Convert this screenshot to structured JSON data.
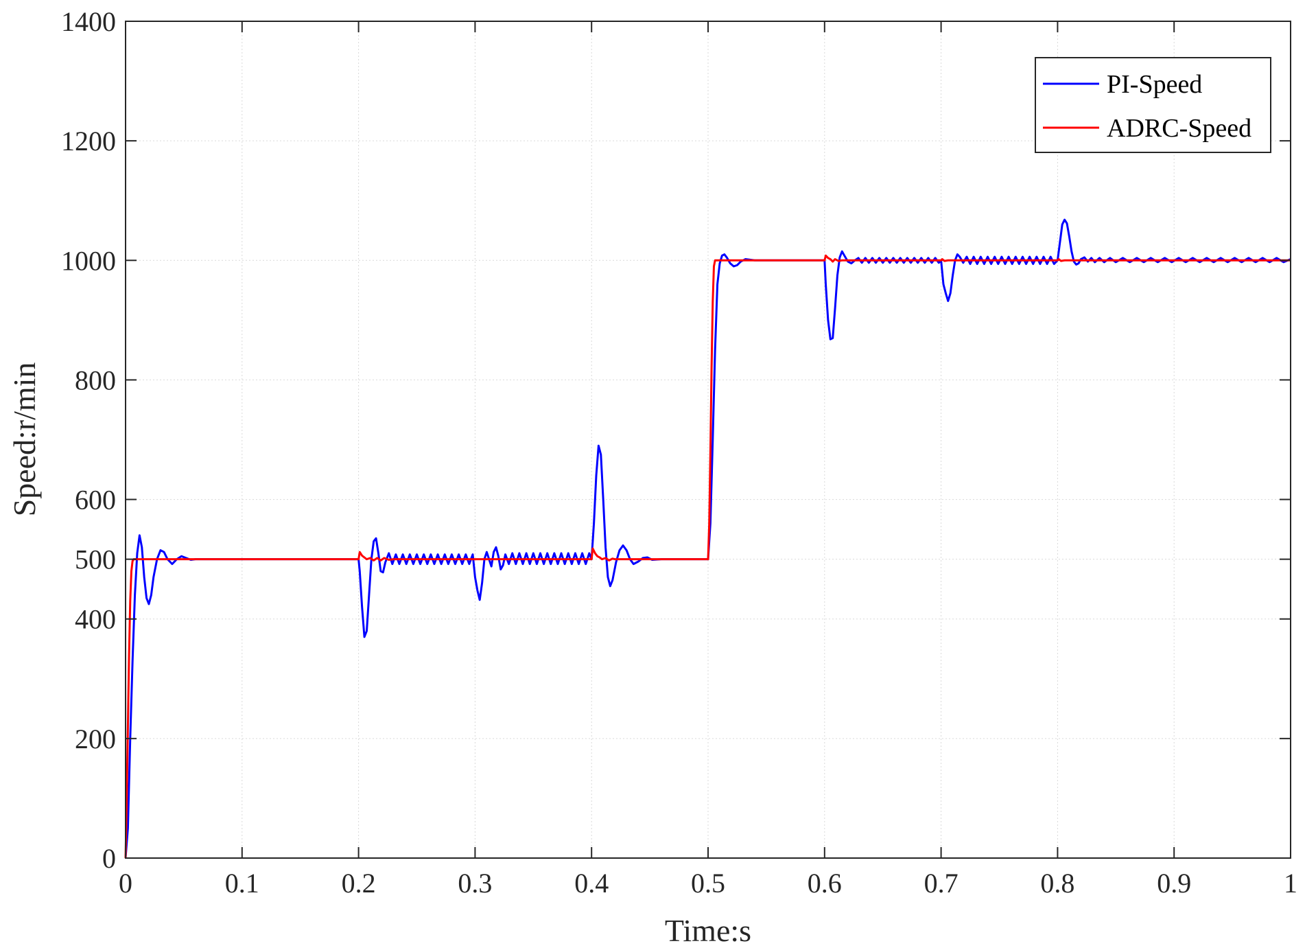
{
  "chart_data": {
    "type": "line",
    "title": "",
    "xlabel": "Time:s",
    "ylabel": "Speed:r/min",
    "xlim": [
      0,
      1
    ],
    "ylim": [
      0,
      1400
    ],
    "xticks": [
      0,
      0.1,
      0.2,
      0.3,
      0.4,
      0.5,
      0.6,
      0.7,
      0.8,
      0.9,
      1
    ],
    "xtick_labels": [
      "0",
      "0.1",
      "0.2",
      "0.3",
      "0.4",
      "0.5",
      "0.6",
      "0.7",
      "0.8",
      "0.9",
      "1"
    ],
    "yticks": [
      0,
      200,
      400,
      500,
      600,
      800,
      1000,
      1200,
      1400
    ],
    "ytick_labels": [
      "0",
      "200",
      "400",
      "500",
      "600",
      "800",
      "1000",
      "1200",
      "1400"
    ],
    "grid": true,
    "legend_position": "top-right",
    "series": [
      {
        "name": "PI-Speed",
        "color": "#0000ff",
        "points": [
          [
            0,
            0
          ],
          [
            0.002,
            50
          ],
          [
            0.004,
            200
          ],
          [
            0.006,
            330
          ],
          [
            0.008,
            440
          ],
          [
            0.01,
            510
          ],
          [
            0.012,
            540
          ],
          [
            0.014,
            520
          ],
          [
            0.016,
            470
          ],
          [
            0.018,
            435
          ],
          [
            0.02,
            425
          ],
          [
            0.022,
            440
          ],
          [
            0.024,
            470
          ],
          [
            0.027,
            500
          ],
          [
            0.03,
            515
          ],
          [
            0.033,
            512
          ],
          [
            0.036,
            500
          ],
          [
            0.04,
            492
          ],
          [
            0.044,
            500
          ],
          [
            0.048,
            505
          ],
          [
            0.052,
            502
          ],
          [
            0.056,
            499
          ],
          [
            0.06,
            500
          ],
          [
            0.2,
            500
          ],
          [
            0.201,
            480
          ],
          [
            0.203,
            420
          ],
          [
            0.205,
            370
          ],
          [
            0.207,
            380
          ],
          [
            0.209,
            440
          ],
          [
            0.211,
            500
          ],
          [
            0.213,
            530
          ],
          [
            0.215,
            535
          ],
          [
            0.217,
            510
          ],
          [
            0.219,
            480
          ],
          [
            0.221,
            478
          ],
          [
            0.223,
            495
          ],
          [
            0.226,
            510
          ],
          [
            0.229,
            492
          ],
          [
            0.232,
            508
          ],
          [
            0.235,
            492
          ],
          [
            0.238,
            508
          ],
          [
            0.241,
            492
          ],
          [
            0.244,
            508
          ],
          [
            0.247,
            492
          ],
          [
            0.25,
            508
          ],
          [
            0.253,
            492
          ],
          [
            0.256,
            508
          ],
          [
            0.259,
            492
          ],
          [
            0.262,
            508
          ],
          [
            0.265,
            492
          ],
          [
            0.268,
            508
          ],
          [
            0.271,
            492
          ],
          [
            0.274,
            508
          ],
          [
            0.277,
            492
          ],
          [
            0.28,
            508
          ],
          [
            0.283,
            492
          ],
          [
            0.286,
            508
          ],
          [
            0.289,
            492
          ],
          [
            0.292,
            508
          ],
          [
            0.295,
            492
          ],
          [
            0.298,
            508
          ],
          [
            0.3,
            470
          ],
          [
            0.302,
            448
          ],
          [
            0.304,
            432
          ],
          [
            0.306,
            460
          ],
          [
            0.308,
            500
          ],
          [
            0.31,
            512
          ],
          [
            0.312,
            500
          ],
          [
            0.314,
            488
          ],
          [
            0.316,
            512
          ],
          [
            0.318,
            520
          ],
          [
            0.32,
            505
          ],
          [
            0.322,
            483
          ],
          [
            0.324,
            490
          ],
          [
            0.326,
            508
          ],
          [
            0.329,
            492
          ],
          [
            0.332,
            510
          ],
          [
            0.335,
            492
          ],
          [
            0.338,
            510
          ],
          [
            0.341,
            492
          ],
          [
            0.344,
            510
          ],
          [
            0.347,
            492
          ],
          [
            0.35,
            510
          ],
          [
            0.353,
            492
          ],
          [
            0.356,
            510
          ],
          [
            0.359,
            492
          ],
          [
            0.362,
            510
          ],
          [
            0.365,
            492
          ],
          [
            0.368,
            510
          ],
          [
            0.371,
            492
          ],
          [
            0.374,
            510
          ],
          [
            0.377,
            492
          ],
          [
            0.38,
            510
          ],
          [
            0.383,
            492
          ],
          [
            0.386,
            510
          ],
          [
            0.389,
            492
          ],
          [
            0.392,
            510
          ],
          [
            0.395,
            492
          ],
          [
            0.398,
            510
          ],
          [
            0.4,
            500
          ],
          [
            0.402,
            560
          ],
          [
            0.404,
            640
          ],
          [
            0.406,
            690
          ],
          [
            0.408,
            675
          ],
          [
            0.41,
            600
          ],
          [
            0.412,
            520
          ],
          [
            0.414,
            470
          ],
          [
            0.416,
            455
          ],
          [
            0.418,
            465
          ],
          [
            0.421,
            495
          ],
          [
            0.424,
            515
          ],
          [
            0.427,
            523
          ],
          [
            0.43,
            515
          ],
          [
            0.433,
            500
          ],
          [
            0.436,
            492
          ],
          [
            0.44,
            496
          ],
          [
            0.444,
            502
          ],
          [
            0.448,
            503
          ],
          [
            0.452,
            499
          ],
          [
            0.46,
            500
          ],
          [
            0.5,
            500
          ],
          [
            0.502,
            560
          ],
          [
            0.504,
            700
          ],
          [
            0.506,
            850
          ],
          [
            0.508,
            960
          ],
          [
            0.51,
            995
          ],
          [
            0.512,
            1008
          ],
          [
            0.514,
            1010
          ],
          [
            0.516,
            1005
          ],
          [
            0.519,
            995
          ],
          [
            0.522,
            990
          ],
          [
            0.525,
            992
          ],
          [
            0.528,
            998
          ],
          [
            0.532,
            1002
          ],
          [
            0.536,
            1001
          ],
          [
            0.54,
            1000
          ],
          [
            0.6,
            1000
          ],
          [
            0.601,
            960
          ],
          [
            0.603,
            900
          ],
          [
            0.605,
            868
          ],
          [
            0.607,
            870
          ],
          [
            0.609,
            920
          ],
          [
            0.611,
            975
          ],
          [
            0.613,
            1005
          ],
          [
            0.615,
            1015
          ],
          [
            0.617,
            1008
          ],
          [
            0.62,
            998
          ],
          [
            0.623,
            995
          ],
          [
            0.626,
            1000
          ],
          [
            0.629,
            1004
          ],
          [
            0.632,
            996
          ],
          [
            0.635,
            1004
          ],
          [
            0.638,
            996
          ],
          [
            0.641,
            1004
          ],
          [
            0.644,
            996
          ],
          [
            0.647,
            1004
          ],
          [
            0.65,
            996
          ],
          [
            0.653,
            1004
          ],
          [
            0.656,
            996
          ],
          [
            0.659,
            1004
          ],
          [
            0.662,
            996
          ],
          [
            0.665,
            1004
          ],
          [
            0.668,
            996
          ],
          [
            0.671,
            1004
          ],
          [
            0.674,
            996
          ],
          [
            0.677,
            1004
          ],
          [
            0.68,
            996
          ],
          [
            0.683,
            1004
          ],
          [
            0.686,
            996
          ],
          [
            0.689,
            1004
          ],
          [
            0.692,
            996
          ],
          [
            0.695,
            1004
          ],
          [
            0.698,
            996
          ],
          [
            0.7,
            1000
          ],
          [
            0.702,
            960
          ],
          [
            0.704,
            945
          ],
          [
            0.706,
            932
          ],
          [
            0.708,
            945
          ],
          [
            0.71,
            975
          ],
          [
            0.712,
            1000
          ],
          [
            0.714,
            1010
          ],
          [
            0.716,
            1006
          ],
          [
            0.719,
            996
          ],
          [
            0.722,
            1006
          ],
          [
            0.725,
            994
          ],
          [
            0.728,
            1006
          ],
          [
            0.731,
            994
          ],
          [
            0.734,
            1006
          ],
          [
            0.737,
            994
          ],
          [
            0.74,
            1006
          ],
          [
            0.743,
            994
          ],
          [
            0.746,
            1006
          ],
          [
            0.749,
            994
          ],
          [
            0.752,
            1006
          ],
          [
            0.755,
            994
          ],
          [
            0.758,
            1006
          ],
          [
            0.761,
            994
          ],
          [
            0.764,
            1006
          ],
          [
            0.767,
            994
          ],
          [
            0.77,
            1006
          ],
          [
            0.773,
            994
          ],
          [
            0.776,
            1006
          ],
          [
            0.779,
            994
          ],
          [
            0.782,
            1006
          ],
          [
            0.785,
            994
          ],
          [
            0.788,
            1006
          ],
          [
            0.791,
            994
          ],
          [
            0.794,
            1006
          ],
          [
            0.797,
            994
          ],
          [
            0.8,
            1000
          ],
          [
            0.802,
            1030
          ],
          [
            0.804,
            1060
          ],
          [
            0.806,
            1068
          ],
          [
            0.808,
            1062
          ],
          [
            0.81,
            1040
          ],
          [
            0.812,
            1015
          ],
          [
            0.814,
            998
          ],
          [
            0.816,
            993
          ],
          [
            0.818,
            995
          ],
          [
            0.82,
            1002
          ],
          [
            0.823,
            1005
          ],
          [
            0.826,
            998
          ],
          [
            0.829,
            1004
          ],
          [
            0.832,
            997
          ],
          [
            0.836,
            1004
          ],
          [
            0.84,
            997
          ],
          [
            0.845,
            1004
          ],
          [
            0.85,
            997
          ],
          [
            0.856,
            1004
          ],
          [
            0.862,
            997
          ],
          [
            0.868,
            1004
          ],
          [
            0.874,
            997
          ],
          [
            0.88,
            1004
          ],
          [
            0.886,
            997
          ],
          [
            0.892,
            1004
          ],
          [
            0.898,
            997
          ],
          [
            0.904,
            1004
          ],
          [
            0.91,
            997
          ],
          [
            0.916,
            1004
          ],
          [
            0.922,
            997
          ],
          [
            0.928,
            1004
          ],
          [
            0.934,
            997
          ],
          [
            0.94,
            1004
          ],
          [
            0.946,
            997
          ],
          [
            0.952,
            1004
          ],
          [
            0.958,
            997
          ],
          [
            0.964,
            1004
          ],
          [
            0.97,
            997
          ],
          [
            0.976,
            1004
          ],
          [
            0.982,
            997
          ],
          [
            0.988,
            1004
          ],
          [
            0.994,
            997
          ],
          [
            1.0,
            1002
          ]
        ]
      },
      {
        "name": "ADRC-Speed",
        "color": "#ff0000",
        "points": [
          [
            0,
            0
          ],
          [
            0.001,
            100
          ],
          [
            0.002,
            220
          ],
          [
            0.003,
            340
          ],
          [
            0.004,
            430
          ],
          [
            0.005,
            480
          ],
          [
            0.006,
            497
          ],
          [
            0.007,
            500
          ],
          [
            0.2,
            500
          ],
          [
            0.201,
            512
          ],
          [
            0.203,
            506
          ],
          [
            0.205,
            503
          ],
          [
            0.207,
            500
          ],
          [
            0.21,
            502
          ],
          [
            0.213,
            498
          ],
          [
            0.216,
            502
          ],
          [
            0.219,
            498
          ],
          [
            0.222,
            502
          ],
          [
            0.226,
            499
          ],
          [
            0.23,
            500
          ],
          [
            0.4,
            500
          ],
          [
            0.401,
            518
          ],
          [
            0.403,
            510
          ],
          [
            0.405,
            505
          ],
          [
            0.407,
            503
          ],
          [
            0.409,
            500
          ],
          [
            0.412,
            502
          ],
          [
            0.415,
            498
          ],
          [
            0.418,
            501
          ],
          [
            0.42,
            500
          ],
          [
            0.5,
            500
          ],
          [
            0.501,
            560
          ],
          [
            0.502,
            680
          ],
          [
            0.503,
            820
          ],
          [
            0.504,
            930
          ],
          [
            0.505,
            990
          ],
          [
            0.506,
            1000
          ],
          [
            0.6,
            1000
          ],
          [
            0.601,
            1008
          ],
          [
            0.603,
            1004
          ],
          [
            0.605,
            1002
          ],
          [
            0.607,
            998
          ],
          [
            0.609,
            1002
          ],
          [
            0.612,
            999
          ],
          [
            0.615,
            1000
          ],
          [
            0.7,
            1000
          ],
          [
            0.701,
            1002
          ],
          [
            0.703,
            999
          ],
          [
            0.706,
            1000
          ],
          [
            0.8,
            1000
          ],
          [
            0.801,
            1002
          ],
          [
            0.803,
            999
          ],
          [
            0.806,
            1000
          ],
          [
            1.0,
            1000
          ]
        ]
      }
    ]
  }
}
